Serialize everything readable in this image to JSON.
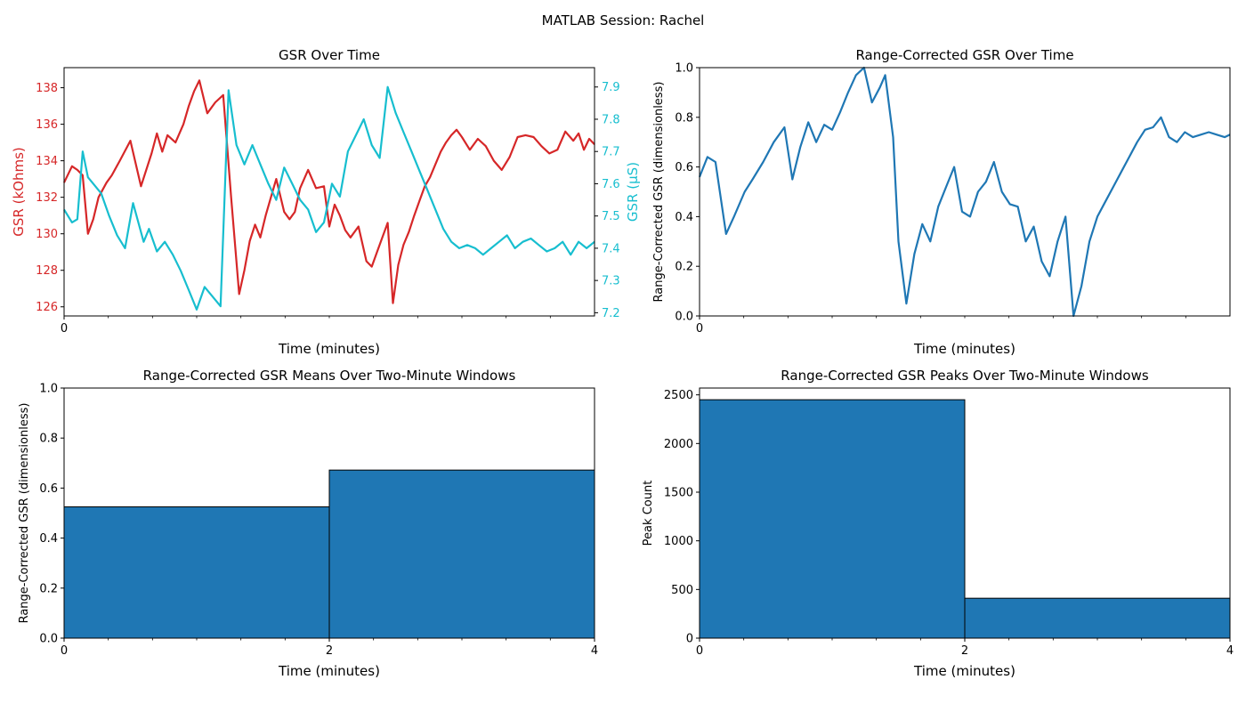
{
  "figure": {
    "suptitle": "MATLAB Session: Rachel"
  },
  "colors": {
    "gsr_kohms": "#d62728",
    "gsr_us": "#17becf",
    "series_blue": "#1f77b4",
    "bar_edge": "#000000",
    "axes": "#000000"
  },
  "chart_data": [
    {
      "type": "line",
      "title": "GSR Over Time",
      "xlabel": "Time (minutes)",
      "ylabel": "GSR (kOhms)",
      "ylabel_right": "GSR (μS)",
      "xticks": [
        "0"
      ],
      "xlim": [
        0,
        4
      ],
      "ylim": [
        125.5,
        139.1
      ],
      "ylim_right": [
        7.19,
        7.96
      ],
      "yticks": [
        126,
        128,
        130,
        132,
        134,
        136,
        138
      ],
      "yticks_right": [
        7.2,
        7.3,
        7.4,
        7.5,
        7.6,
        7.7,
        7.8,
        7.9
      ],
      "grid": false,
      "series": [
        {
          "axis": "left",
          "color": "#d62728",
          "x": [
            0,
            0.06,
            0.1,
            0.14,
            0.18,
            0.22,
            0.26,
            0.32,
            0.36,
            0.42,
            0.5,
            0.58,
            0.66,
            0.7,
            0.74,
            0.78,
            0.84,
            0.9,
            0.94,
            0.98,
            1.02,
            1.08,
            1.14,
            1.2,
            1.26,
            1.32,
            1.36,
            1.4,
            1.44,
            1.48,
            1.52,
            1.56,
            1.6,
            1.66,
            1.7,
            1.74,
            1.78,
            1.84,
            1.9,
            1.96,
            2.0,
            2.04,
            2.08,
            2.12,
            2.16,
            2.22,
            2.28,
            2.32,
            2.36,
            2.4,
            2.44,
            2.48,
            2.52,
            2.56,
            2.6,
            2.64,
            2.68,
            2.72,
            2.76,
            2.8,
            2.84,
            2.88,
            2.92,
            2.96,
            3.0,
            3.06,
            3.12,
            3.18,
            3.24,
            3.3,
            3.36,
            3.42,
            3.48,
            3.54,
            3.6,
            3.66,
            3.72,
            3.78,
            3.84,
            3.88,
            3.92,
            3.96,
            4.0
          ],
          "values": [
            132.8,
            133.7,
            133.5,
            133.2,
            130.0,
            130.8,
            132.0,
            132.8,
            133.2,
            134.0,
            135.1,
            132.6,
            134.4,
            135.5,
            134.5,
            135.4,
            135.0,
            136.0,
            137.0,
            137.8,
            138.4,
            136.6,
            137.2,
            137.6,
            132.0,
            126.7,
            128.0,
            129.6,
            130.5,
            129.8,
            131.0,
            132.0,
            133.0,
            131.2,
            130.8,
            131.2,
            132.5,
            133.5,
            132.5,
            132.6,
            130.4,
            131.6,
            131.0,
            130.2,
            129.8,
            130.4,
            128.5,
            128.2,
            129.0,
            129.8,
            130.6,
            126.2,
            128.3,
            129.4,
            130.1,
            131.0,
            131.8,
            132.6,
            133.1,
            133.8,
            134.5,
            135.0,
            135.4,
            135.7,
            135.3,
            134.6,
            135.2,
            134.8,
            134.0,
            133.5,
            134.2,
            135.3,
            135.4,
            135.3,
            134.8,
            134.4,
            134.6,
            135.6,
            135.1,
            135.5,
            134.6,
            135.2,
            134.9
          ]
        },
        {
          "axis": "right",
          "color": "#17becf",
          "x": [
            0,
            0.06,
            0.1,
            0.14,
            0.18,
            0.22,
            0.28,
            0.34,
            0.4,
            0.46,
            0.52,
            0.6,
            0.64,
            0.7,
            0.76,
            0.82,
            0.88,
            0.94,
            1.0,
            1.06,
            1.12,
            1.18,
            1.24,
            1.3,
            1.36,
            1.42,
            1.48,
            1.54,
            1.6,
            1.66,
            1.72,
            1.78,
            1.84,
            1.9,
            1.96,
            2.02,
            2.08,
            2.14,
            2.2,
            2.26,
            2.32,
            2.38,
            2.44,
            2.5,
            2.56,
            2.62,
            2.68,
            2.74,
            2.8,
            2.86,
            2.92,
            2.98,
            3.04,
            3.1,
            3.16,
            3.22,
            3.28,
            3.34,
            3.4,
            3.46,
            3.52,
            3.58,
            3.64,
            3.7,
            3.76,
            3.82,
            3.88,
            3.94,
            4.0
          ],
          "values": [
            7.52,
            7.48,
            7.49,
            7.7,
            7.62,
            7.6,
            7.57,
            7.5,
            7.44,
            7.4,
            7.54,
            7.42,
            7.46,
            7.39,
            7.42,
            7.38,
            7.33,
            7.27,
            7.21,
            7.28,
            7.25,
            7.22,
            7.89,
            7.72,
            7.66,
            7.72,
            7.66,
            7.6,
            7.55,
            7.65,
            7.6,
            7.55,
            7.52,
            7.45,
            7.48,
            7.6,
            7.56,
            7.7,
            7.75,
            7.8,
            7.72,
            7.68,
            7.9,
            7.82,
            7.76,
            7.7,
            7.64,
            7.58,
            7.52,
            7.46,
            7.42,
            7.4,
            7.41,
            7.4,
            7.38,
            7.4,
            7.42,
            7.44,
            7.4,
            7.42,
            7.43,
            7.41,
            7.39,
            7.4,
            7.42,
            7.38,
            7.42,
            7.4,
            7.42
          ]
        }
      ]
    },
    {
      "type": "line",
      "title": "Range-Corrected GSR Over Time",
      "xlabel": "Time (minutes)",
      "ylabel": "Range-Corrected GSR (dimensionless)",
      "xticks": [
        "0"
      ],
      "xlim": [
        0,
        4
      ],
      "ylim": [
        0,
        1
      ],
      "yticks": [
        0.0,
        0.2,
        0.4,
        0.6,
        0.8,
        1.0
      ],
      "grid": false,
      "series": [
        {
          "color": "#1f77b4",
          "x": [
            0,
            0.06,
            0.12,
            0.2,
            0.26,
            0.34,
            0.4,
            0.48,
            0.56,
            0.64,
            0.7,
            0.76,
            0.82,
            0.88,
            0.94,
            1.0,
            1.06,
            1.12,
            1.18,
            1.24,
            1.3,
            1.36,
            1.4,
            1.46,
            1.5,
            1.56,
            1.62,
            1.68,
            1.74,
            1.8,
            1.86,
            1.92,
            1.98,
            2.04,
            2.1,
            2.16,
            2.22,
            2.28,
            2.34,
            2.4,
            2.46,
            2.52,
            2.58,
            2.64,
            2.7,
            2.76,
            2.82,
            2.88,
            2.94,
            3.0,
            3.06,
            3.12,
            3.18,
            3.24,
            3.3,
            3.36,
            3.42,
            3.48,
            3.54,
            3.6,
            3.66,
            3.72,
            3.78,
            3.84,
            3.9,
            3.96,
            4.0
          ],
          "values": [
            0.56,
            0.64,
            0.62,
            0.33,
            0.4,
            0.5,
            0.55,
            0.62,
            0.7,
            0.76,
            0.55,
            0.68,
            0.78,
            0.7,
            0.77,
            0.75,
            0.82,
            0.9,
            0.97,
            1.0,
            0.86,
            0.92,
            0.97,
            0.72,
            0.3,
            0.05,
            0.25,
            0.37,
            0.3,
            0.44,
            0.52,
            0.6,
            0.42,
            0.4,
            0.5,
            0.54,
            0.62,
            0.5,
            0.45,
            0.44,
            0.3,
            0.36,
            0.22,
            0.16,
            0.3,
            0.4,
            0.0,
            0.12,
            0.3,
            0.4,
            0.46,
            0.52,
            0.58,
            0.64,
            0.7,
            0.75,
            0.76,
            0.8,
            0.72,
            0.7,
            0.74,
            0.72,
            0.73,
            0.74,
            0.73,
            0.72,
            0.73
          ]
        }
      ]
    },
    {
      "type": "bar",
      "title": "Range-Corrected GSR Means Over Two-Minute Windows",
      "xlabel": "Time (minutes)",
      "ylabel": "Range-Corrected GSR (dimensionless)",
      "xticks": [
        0,
        2,
        4
      ],
      "xlim": [
        0,
        4
      ],
      "ylim": [
        0,
        1
      ],
      "yticks": [
        0.0,
        0.2,
        0.4,
        0.6,
        0.8,
        1.0
      ],
      "bars": [
        {
          "x0": 0,
          "x1": 2,
          "value": 0.525
        },
        {
          "x0": 2,
          "x1": 4,
          "value": 0.672
        }
      ]
    },
    {
      "type": "bar",
      "title": "Range-Corrected GSR Peaks Over Two-Minute Windows",
      "xlabel": "Time (minutes)",
      "ylabel": "Peak Count",
      "xticks": [
        0,
        2,
        4
      ],
      "xlim": [
        0,
        4
      ],
      "ylim": [
        0,
        2570
      ],
      "yticks": [
        0,
        500,
        1000,
        1500,
        2000,
        2500
      ],
      "bars": [
        {
          "x0": 0,
          "x1": 2,
          "value": 2450
        },
        {
          "x0": 2,
          "x1": 4,
          "value": 410
        }
      ]
    }
  ]
}
